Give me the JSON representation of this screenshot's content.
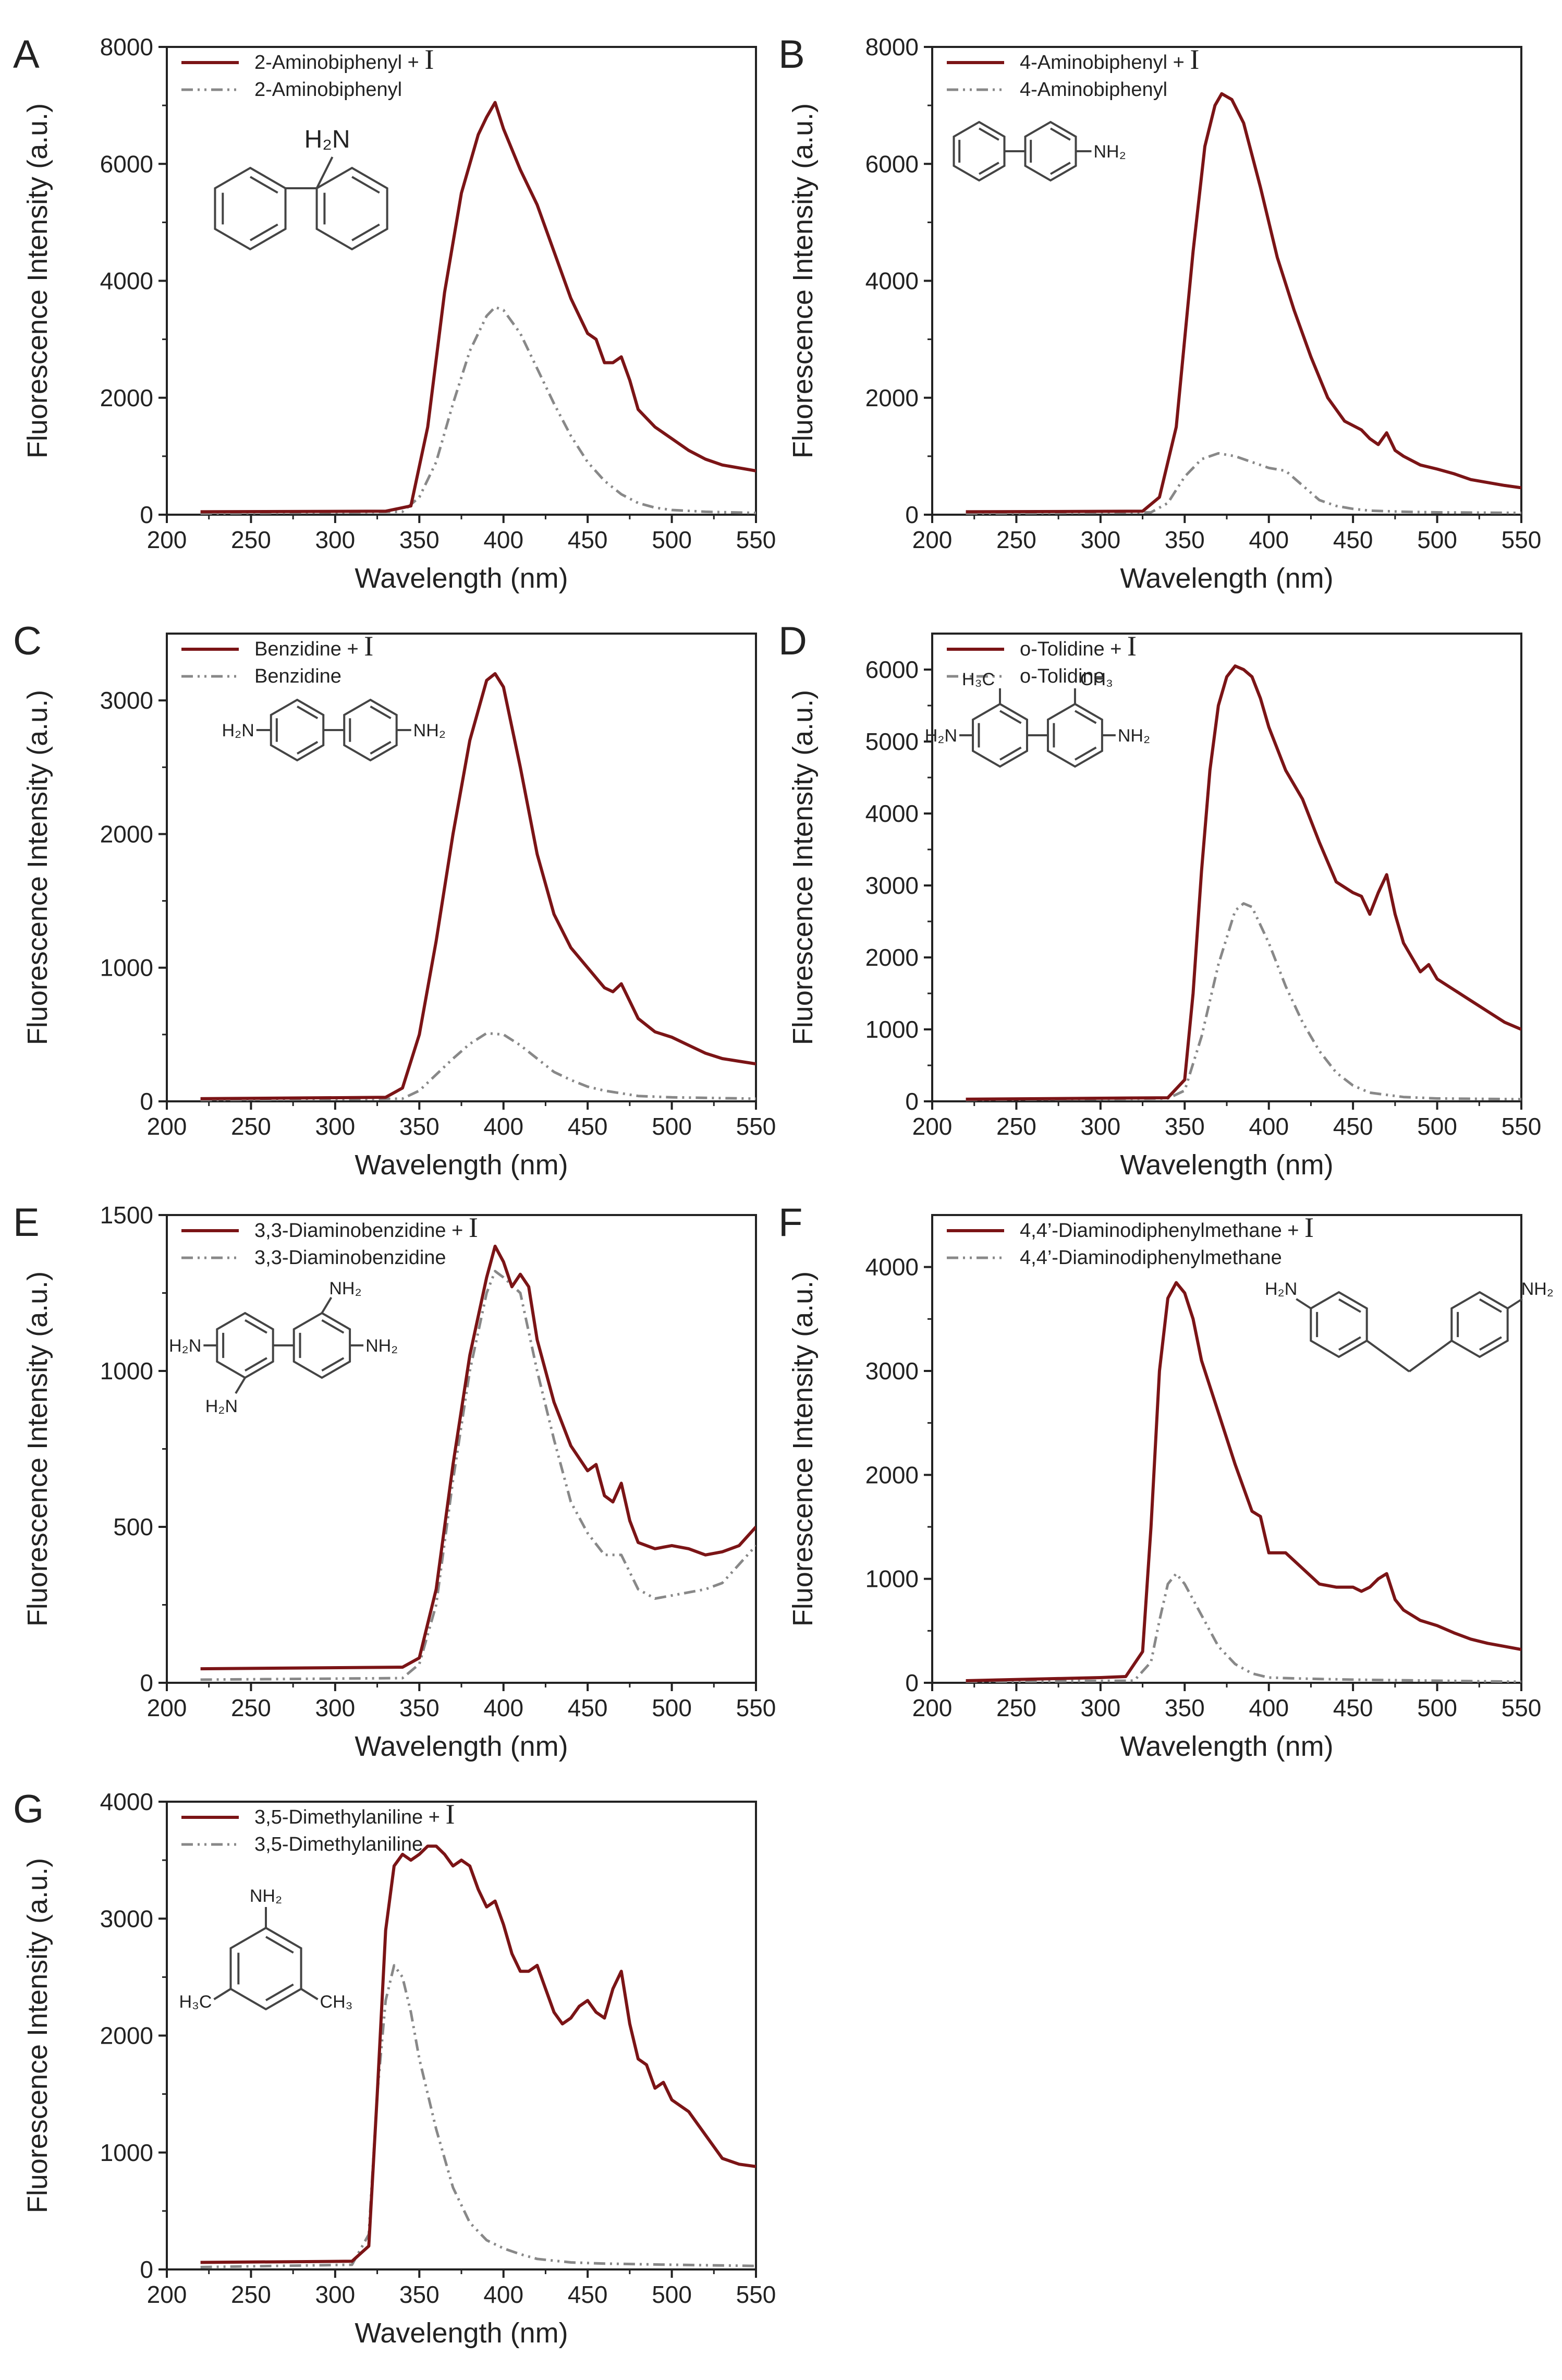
{
  "chart_data": [
    {
      "letter": "A",
      "type": "line",
      "xlabel": "Wavelength (nm)",
      "ylabel": "Fluorescence Intensity (a.u.)",
      "xlim": [
        200,
        550
      ],
      "ylim": [
        0,
        8000
      ],
      "xticks": [
        200,
        250,
        300,
        350,
        400,
        450,
        500,
        550
      ],
      "yticks": [
        0,
        2000,
        4000,
        6000,
        8000
      ],
      "legend_symbol": "I",
      "series": [
        {
          "name": "2-Aminobiphenyl + ",
          "has_symbol": true,
          "style": "solid",
          "x": [
            220,
            330,
            345,
            355,
            365,
            375,
            385,
            390,
            395,
            400,
            410,
            420,
            430,
            440,
            445,
            450,
            455,
            460,
            465,
            470,
            475,
            480,
            490,
            500,
            510,
            520,
            530,
            540,
            550
          ],
          "y": [
            50,
            60,
            150,
            1500,
            3800,
            5500,
            6500,
            6800,
            7050,
            6600,
            5900,
            5300,
            4500,
            3700,
            3400,
            3100,
            3000,
            2600,
            2600,
            2700,
            2300,
            1800,
            1500,
            1300,
            1100,
            950,
            850,
            800,
            750
          ]
        },
        {
          "name": "2-Aminobiphenyl",
          "has_symbol": false,
          "style": "dashdot",
          "x": [
            220,
            340,
            350,
            360,
            370,
            380,
            390,
            395,
            400,
            410,
            420,
            430,
            440,
            450,
            460,
            470,
            480,
            490,
            500,
            520,
            550
          ],
          "y": [
            20,
            50,
            300,
            900,
            1900,
            2800,
            3400,
            3550,
            3500,
            3100,
            2500,
            1900,
            1350,
            900,
            580,
            350,
            200,
            120,
            80,
            50,
            30
          ]
        }
      ],
      "structure": {
        "kind": "aminobiphenyl2",
        "labels": [
          "H₂N"
        ]
      }
    },
    {
      "letter": "B",
      "type": "line",
      "xlabel": "Wavelength (nm)",
      "ylabel": "Fluorescence Intensity (a.u.)",
      "xlim": [
        200,
        550
      ],
      "ylim": [
        0,
        8000
      ],
      "xticks": [
        200,
        250,
        300,
        350,
        400,
        450,
        500,
        550
      ],
      "yticks": [
        0,
        2000,
        4000,
        6000,
        8000
      ],
      "legend_symbol": "I",
      "series": [
        {
          "name": "4-Aminobiphenyl + ",
          "has_symbol": true,
          "style": "solid",
          "x": [
            220,
            325,
            335,
            345,
            355,
            362,
            368,
            372,
            378,
            385,
            395,
            405,
            415,
            425,
            435,
            445,
            455,
            460,
            465,
            470,
            475,
            480,
            490,
            500,
            510,
            520,
            530,
            540,
            550
          ],
          "y": [
            50,
            60,
            300,
            1500,
            4500,
            6300,
            7000,
            7200,
            7100,
            6700,
            5600,
            4400,
            3500,
            2700,
            2000,
            1600,
            1450,
            1300,
            1200,
            1400,
            1100,
            1000,
            850,
            780,
            700,
            600,
            550,
            500,
            460
          ]
        },
        {
          "name": "4-Aminobiphenyl",
          "has_symbol": false,
          "style": "dashdot",
          "x": [
            220,
            330,
            340,
            350,
            360,
            370,
            380,
            390,
            400,
            410,
            420,
            430,
            440,
            450,
            460,
            480,
            500,
            550
          ],
          "y": [
            20,
            40,
            200,
            650,
            950,
            1050,
            1000,
            900,
            800,
            750,
            500,
            250,
            150,
            100,
            70,
            50,
            40,
            30
          ]
        }
      ],
      "structure": {
        "kind": "aminobiphenyl4",
        "labels": [
          "NH₂"
        ]
      }
    },
    {
      "letter": "C",
      "type": "line",
      "xlabel": "Wavelength (nm)",
      "ylabel": "Fluorescence Intensity (a.u.)",
      "xlim": [
        200,
        550
      ],
      "ylim": [
        0,
        3500
      ],
      "xticks": [
        200,
        250,
        300,
        350,
        400,
        450,
        500,
        550
      ],
      "yticks": [
        0,
        1000,
        2000,
        3000
      ],
      "legend_symbol": "I",
      "series": [
        {
          "name": "Benzidine + ",
          "has_symbol": true,
          "style": "solid",
          "x": [
            220,
            330,
            340,
            350,
            360,
            370,
            380,
            390,
            395,
            400,
            410,
            420,
            430,
            440,
            450,
            460,
            465,
            470,
            475,
            480,
            490,
            500,
            510,
            520,
            530,
            540,
            550
          ],
          "y": [
            20,
            30,
            100,
            500,
            1200,
            2000,
            2700,
            3150,
            3200,
            3100,
            2500,
            1850,
            1400,
            1150,
            1000,
            850,
            820,
            880,
            750,
            620,
            520,
            480,
            420,
            360,
            320,
            300,
            280
          ]
        },
        {
          "name": "Benzidine",
          "has_symbol": false,
          "style": "dashdot",
          "x": [
            220,
            340,
            350,
            360,
            370,
            380,
            390,
            400,
            410,
            420,
            430,
            440,
            450,
            460,
            480,
            500,
            550
          ],
          "y": [
            10,
            20,
            80,
            200,
            320,
            430,
            510,
            500,
            420,
            320,
            220,
            160,
            110,
            80,
            40,
            30,
            20
          ]
        }
      ],
      "structure": {
        "kind": "benzidine",
        "labels": [
          "H₂N",
          "NH₂"
        ]
      }
    },
    {
      "letter": "D",
      "type": "line",
      "xlabel": "Wavelength (nm)",
      "ylabel": "Fluorescence Intensity (a.u.)",
      "xlim": [
        200,
        550
      ],
      "ylim": [
        0,
        6500
      ],
      "xticks": [
        200,
        250,
        300,
        350,
        400,
        450,
        500,
        550
      ],
      "yticks": [
        0,
        1000,
        2000,
        3000,
        4000,
        5000,
        6000
      ],
      "legend_symbol": "I",
      "series": [
        {
          "name": "o-Tolidine + ",
          "has_symbol": true,
          "style": "solid",
          "x": [
            220,
            340,
            350,
            355,
            360,
            365,
            370,
            375,
            380,
            385,
            390,
            395,
            400,
            410,
            420,
            430,
            440,
            450,
            455,
            460,
            465,
            470,
            475,
            480,
            490,
            495,
            500,
            510,
            520,
            530,
            540,
            550
          ],
          "y": [
            30,
            50,
            300,
            1500,
            3200,
            4600,
            5500,
            5900,
            6050,
            6000,
            5900,
            5600,
            5200,
            4600,
            4200,
            3600,
            3050,
            2900,
            2850,
            2600,
            2900,
            3150,
            2600,
            2200,
            1800,
            1900,
            1700,
            1550,
            1400,
            1250,
            1100,
            1000
          ]
        },
        {
          "name": "o-Tolidine",
          "has_symbol": false,
          "style": "dashdot",
          "x": [
            220,
            340,
            350,
            360,
            370,
            380,
            385,
            390,
            400,
            410,
            420,
            430,
            440,
            450,
            460,
            480,
            500,
            550
          ],
          "y": [
            20,
            40,
            150,
            900,
            1900,
            2650,
            2750,
            2700,
            2200,
            1600,
            1100,
            700,
            400,
            220,
            120,
            60,
            40,
            30
          ]
        }
      ],
      "structure": {
        "kind": "tolidine",
        "labels": [
          "H₃C",
          "CH₃",
          "H₂N",
          "NH₂"
        ]
      }
    },
    {
      "letter": "E",
      "type": "line",
      "xlabel": "Wavelength (nm)",
      "ylabel": "Fluorescence Intensity (a.u.)",
      "xlim": [
        200,
        550
      ],
      "ylim": [
        0,
        1500
      ],
      "xticks": [
        200,
        250,
        300,
        350,
        400,
        450,
        500,
        550
      ],
      "yticks": [
        0,
        500,
        1000,
        1500
      ],
      "legend_symbol": "I",
      "series": [
        {
          "name": "3,3-Diaminobenzidine + ",
          "has_symbol": true,
          "style": "solid",
          "x": [
            220,
            340,
            350,
            360,
            370,
            380,
            390,
            395,
            400,
            405,
            410,
            415,
            420,
            430,
            440,
            450,
            455,
            460,
            465,
            470,
            475,
            480,
            490,
            500,
            510,
            520,
            530,
            540,
            550
          ],
          "y": [
            45,
            50,
            80,
            300,
            700,
            1050,
            1300,
            1400,
            1350,
            1270,
            1310,
            1270,
            1100,
            900,
            760,
            680,
            700,
            600,
            580,
            640,
            520,
            450,
            430,
            440,
            430,
            410,
            420,
            440,
            500
          ]
        },
        {
          "name": "3,3-Diaminobenzidine",
          "has_symbol": false,
          "style": "dashdot",
          "x": [
            220,
            340,
            350,
            360,
            370,
            380,
            390,
            395,
            400,
            410,
            420,
            430,
            440,
            450,
            460,
            470,
            480,
            490,
            500,
            510,
            520,
            530,
            540,
            550
          ],
          "y": [
            10,
            15,
            60,
            250,
            650,
            1000,
            1250,
            1320,
            1300,
            1250,
            1000,
            780,
            580,
            480,
            410,
            410,
            300,
            270,
            280,
            290,
            300,
            320,
            380,
            440
          ]
        }
      ],
      "structure": {
        "kind": "dab",
        "labels": [
          "NH₂",
          "H₂N",
          "NH₂",
          "H₂N"
        ]
      }
    },
    {
      "letter": "F",
      "type": "line",
      "xlabel": "Wavelength (nm)",
      "ylabel": "Fluorescence Intensity (a.u.)",
      "xlim": [
        200,
        550
      ],
      "ylim": [
        0,
        4500
      ],
      "xticks": [
        200,
        250,
        300,
        350,
        400,
        450,
        500,
        550
      ],
      "yticks": [
        0,
        1000,
        2000,
        3000,
        4000
      ],
      "legend_symbol": "I",
      "series": [
        {
          "name": "4,4’-Diaminodiphenylmethane + ",
          "has_symbol": true,
          "style": "solid",
          "x": [
            220,
            300,
            315,
            325,
            330,
            335,
            340,
            345,
            350,
            355,
            360,
            370,
            380,
            390,
            395,
            400,
            410,
            420,
            430,
            440,
            450,
            455,
            460,
            465,
            470,
            475,
            480,
            490,
            500,
            510,
            520,
            530,
            540,
            550
          ],
          "y": [
            20,
            50,
            60,
            300,
            1500,
            3000,
            3700,
            3850,
            3750,
            3500,
            3100,
            2600,
            2100,
            1650,
            1600,
            1250,
            1250,
            1100,
            950,
            920,
            920,
            880,
            920,
            1000,
            1050,
            800,
            700,
            600,
            550,
            480,
            420,
            380,
            350,
            320
          ]
        },
        {
          "name": "4,4’-Diaminodiphenylmethane",
          "has_symbol": false,
          "style": "dashdot",
          "x": [
            220,
            320,
            330,
            335,
            340,
            345,
            350,
            360,
            370,
            380,
            390,
            400,
            420,
            450,
            500,
            550
          ],
          "y": [
            10,
            20,
            200,
            600,
            950,
            1050,
            950,
            650,
            350,
            180,
            90,
            50,
            40,
            30,
            20,
            10
          ]
        }
      ],
      "structure": {
        "kind": "dadpm",
        "labels": [
          "H₂N",
          "NH₂"
        ]
      }
    },
    {
      "letter": "G",
      "type": "line",
      "xlabel": "Wavelength (nm)",
      "ylabel": "Fluorescence Intensity (a.u.)",
      "xlim": [
        200,
        550
      ],
      "ylim": [
        0,
        4000
      ],
      "xticks": [
        200,
        250,
        300,
        350,
        400,
        450,
        500,
        550
      ],
      "yticks": [
        0,
        1000,
        2000,
        3000,
        4000
      ],
      "legend_symbol": "I",
      "series": [
        {
          "name": "3,5-Dimethylaniline + ",
          "has_symbol": true,
          "style": "solid",
          "x": [
            220,
            310,
            320,
            325,
            330,
            335,
            340,
            345,
            350,
            355,
            360,
            365,
            370,
            375,
            380,
            385,
            390,
            395,
            400,
            405,
            410,
            415,
            420,
            425,
            430,
            435,
            440,
            445,
            450,
            455,
            460,
            465,
            470,
            475,
            480,
            485,
            490,
            495,
            500,
            510,
            520,
            530,
            540,
            550
          ],
          "y": [
            60,
            70,
            200,
            1500,
            2900,
            3450,
            3550,
            3500,
            3550,
            3620,
            3620,
            3550,
            3450,
            3500,
            3450,
            3250,
            3100,
            3150,
            2950,
            2700,
            2550,
            2550,
            2600,
            2400,
            2200,
            2100,
            2150,
            2250,
            2300,
            2200,
            2150,
            2400,
            2550,
            2100,
            1800,
            1750,
            1550,
            1600,
            1450,
            1350,
            1150,
            950,
            900,
            880
          ]
        },
        {
          "name": "3,5-Dimethylaniline",
          "has_symbol": false,
          "style": "dashdot",
          "x": [
            220,
            310,
            320,
            325,
            330,
            335,
            340,
            345,
            350,
            360,
            370,
            380,
            390,
            400,
            410,
            420,
            440,
            460,
            500,
            550
          ],
          "y": [
            20,
            40,
            300,
            1500,
            2300,
            2600,
            2500,
            2200,
            1800,
            1200,
            700,
            400,
            250,
            180,
            130,
            90,
            60,
            50,
            40,
            30
          ]
        }
      ],
      "structure": {
        "kind": "dimethylaniline",
        "labels": [
          "NH₂",
          "H₃C",
          "CH₃"
        ]
      }
    }
  ],
  "colors": {
    "main": "#7b1416",
    "reference": "#888888",
    "axis": "#222222",
    "structure": "#444444"
  }
}
